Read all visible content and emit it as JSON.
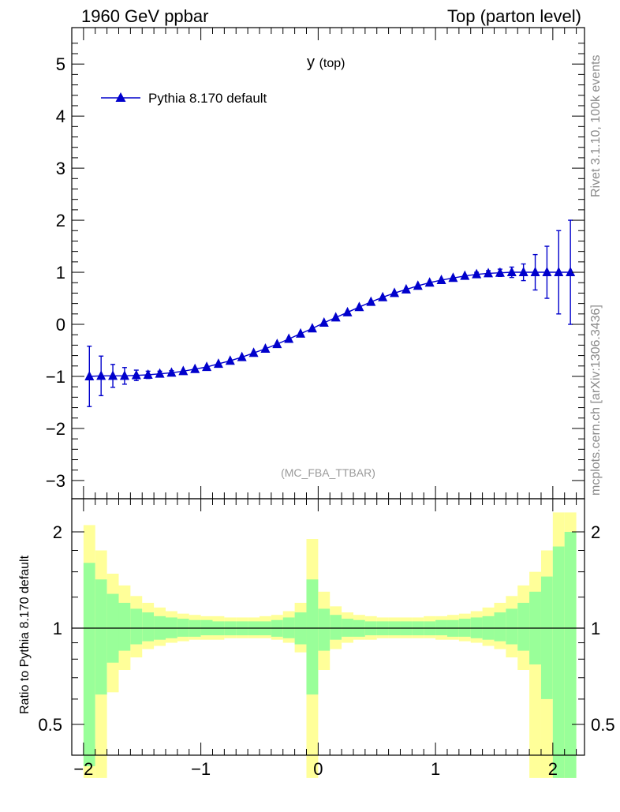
{
  "header": {
    "left": "1960 GeV ppbar",
    "right": "Top (parton level)"
  },
  "side_labels": {
    "upper": "Rivet 3.1.10,  100k events",
    "lower": "mcplots.cern.ch [arXiv:1306.3436]"
  },
  "chart_data": [
    {
      "type": "scatter",
      "title": "y",
      "title_sub": "(top)",
      "annotation": "(MC_FBA_TTBAR)",
      "xlim": [
        -2.1,
        2.27
      ],
      "ylim": [
        -3.35,
        5.7
      ],
      "y_ticks": [
        -3,
        -2,
        -1,
        0,
        1,
        2,
        3,
        4,
        5
      ],
      "legend": {
        "position": "top-left",
        "entries": [
          "Pythia 8.170 default"
        ]
      },
      "colors": {
        "series": "#0000cc"
      },
      "series": [
        {
          "name": "Pythia 8.170 default",
          "x": [
            -1.95,
            -1.85,
            -1.75,
            -1.65,
            -1.55,
            -1.45,
            -1.35,
            -1.25,
            -1.15,
            -1.05,
            -0.95,
            -0.85,
            -0.75,
            -0.65,
            -0.55,
            -0.45,
            -0.35,
            -0.25,
            -0.15,
            -0.05,
            0.05,
            0.15,
            0.25,
            0.35,
            0.45,
            0.55,
            0.65,
            0.75,
            0.85,
            0.95,
            1.05,
            1.15,
            1.25,
            1.35,
            1.45,
            1.55,
            1.65,
            1.75,
            1.85,
            1.95,
            2.05,
            2.15
          ],
          "y": [
            -1.0,
            -0.99,
            -0.99,
            -0.99,
            -0.98,
            -0.97,
            -0.95,
            -0.93,
            -0.9,
            -0.86,
            -0.82,
            -0.76,
            -0.7,
            -0.63,
            -0.55,
            -0.47,
            -0.38,
            -0.28,
            -0.18,
            -0.08,
            0.03,
            0.13,
            0.23,
            0.33,
            0.43,
            0.52,
            0.6,
            0.67,
            0.74,
            0.8,
            0.85,
            0.89,
            0.93,
            0.96,
            0.98,
            0.99,
            1.0,
            1.0,
            1.0,
            1.0,
            1.0,
            1.0
          ],
          "yerr": [
            0.58,
            0.38,
            0.22,
            0.16,
            0.1,
            0.07,
            0.05,
            0.04,
            0.03,
            0.03,
            0.03,
            0.03,
            0.02,
            0.02,
            0.02,
            0.02,
            0.02,
            0.02,
            0.02,
            0.02,
            0.02,
            0.02,
            0.02,
            0.02,
            0.02,
            0.02,
            0.02,
            0.02,
            0.02,
            0.02,
            0.03,
            0.03,
            0.03,
            0.04,
            0.05,
            0.07,
            0.1,
            0.16,
            0.34,
            0.5,
            0.8,
            1.0
          ]
        }
      ]
    },
    {
      "type": "area",
      "ylabel": "Ratio to Pythia 8.170 default",
      "xlim": [
        -2.1,
        2.27
      ],
      "ylim": [
        0.34,
        2.3
      ],
      "x_ticks": [
        -2,
        -1,
        0,
        1,
        2
      ],
      "y_ticks": [
        0.5,
        1,
        2
      ],
      "reference_line": 1,
      "colors": {
        "band_yellow": "#ffff99",
        "band_green": "#99ff99"
      },
      "bins": {
        "x": [
          -1.95,
          -1.85,
          -1.75,
          -1.65,
          -1.55,
          -1.45,
          -1.35,
          -1.25,
          -1.15,
          -1.05,
          -0.95,
          -0.85,
          -0.75,
          -0.65,
          -0.55,
          -0.45,
          -0.35,
          -0.25,
          -0.15,
          -0.05,
          0.05,
          0.15,
          0.25,
          0.35,
          0.45,
          0.55,
          0.65,
          0.75,
          0.85,
          0.95,
          1.05,
          1.15,
          1.25,
          1.35,
          1.45,
          1.55,
          1.65,
          1.75,
          1.85,
          1.95,
          2.05,
          2.15
        ],
        "yellow_up": [
          2.1,
          1.75,
          1.48,
          1.36,
          1.26,
          1.2,
          1.16,
          1.13,
          1.11,
          1.1,
          1.09,
          1.09,
          1.08,
          1.08,
          1.08,
          1.09,
          1.1,
          1.13,
          1.2,
          1.9,
          1.3,
          1.17,
          1.12,
          1.1,
          1.09,
          1.08,
          1.08,
          1.08,
          1.08,
          1.09,
          1.09,
          1.1,
          1.11,
          1.13,
          1.16,
          1.2,
          1.26,
          1.36,
          1.5,
          1.75,
          2.3,
          2.3
        ],
        "green_up": [
          1.6,
          1.42,
          1.28,
          1.2,
          1.15,
          1.12,
          1.09,
          1.08,
          1.07,
          1.06,
          1.06,
          1.05,
          1.05,
          1.05,
          1.05,
          1.05,
          1.06,
          1.08,
          1.12,
          1.42,
          1.15,
          1.1,
          1.07,
          1.06,
          1.05,
          1.05,
          1.05,
          1.05,
          1.05,
          1.05,
          1.06,
          1.06,
          1.07,
          1.08,
          1.09,
          1.12,
          1.15,
          1.2,
          1.3,
          1.45,
          1.8,
          2.0
        ],
        "green_dn": [
          0.37,
          0.62,
          0.78,
          0.85,
          0.89,
          0.91,
          0.92,
          0.93,
          0.94,
          0.94,
          0.95,
          0.95,
          0.95,
          0.95,
          0.95,
          0.95,
          0.94,
          0.93,
          0.89,
          0.62,
          0.85,
          0.92,
          0.94,
          0.94,
          0.95,
          0.95,
          0.95,
          0.95,
          0.95,
          0.95,
          0.95,
          0.94,
          0.94,
          0.93,
          0.92,
          0.91,
          0.89,
          0.85,
          0.77,
          0.6,
          0.34,
          0.34
        ],
        "yellow_dn": [
          0.34,
          0.34,
          0.63,
          0.74,
          0.81,
          0.86,
          0.88,
          0.9,
          0.91,
          0.92,
          0.92,
          0.92,
          0.93,
          0.93,
          0.93,
          0.93,
          0.92,
          0.9,
          0.84,
          0.34,
          0.74,
          0.86,
          0.9,
          0.92,
          0.92,
          0.93,
          0.93,
          0.93,
          0.93,
          0.93,
          0.92,
          0.92,
          0.91,
          0.9,
          0.88,
          0.86,
          0.81,
          0.74,
          0.34,
          0.34,
          0.34,
          0.34
        ]
      }
    }
  ]
}
